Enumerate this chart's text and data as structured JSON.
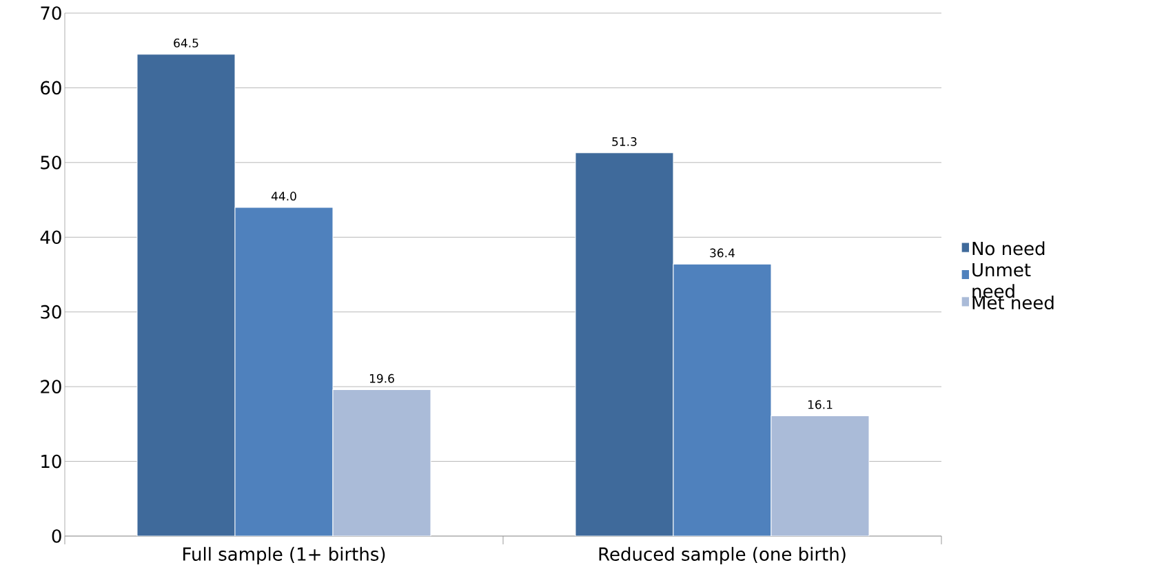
{
  "chart_data": {
    "type": "bar",
    "categories": [
      "Full sample (1+ births)",
      "Reduced sample (one birth)"
    ],
    "series": [
      {
        "name": "No need",
        "color": "#3f6a9b",
        "values": [
          64.5,
          51.3
        ],
        "value_labels": [
          "64.5",
          "51.3"
        ]
      },
      {
        "name": "Unmet need",
        "color": "#4f81bd",
        "values": [
          44.0,
          36.4
        ],
        "value_labels": [
          "44.0",
          "36.4"
        ]
      },
      {
        "name": "Met need",
        "color": "#aabbd8",
        "values": [
          19.6,
          16.1
        ],
        "value_labels": [
          "19.6",
          "16.1"
        ]
      }
    ],
    "ylim": [
      0,
      70
    ],
    "yticks": [
      0,
      10,
      20,
      30,
      40,
      50,
      60,
      70
    ],
    "grid": "y",
    "legend": "right"
  }
}
